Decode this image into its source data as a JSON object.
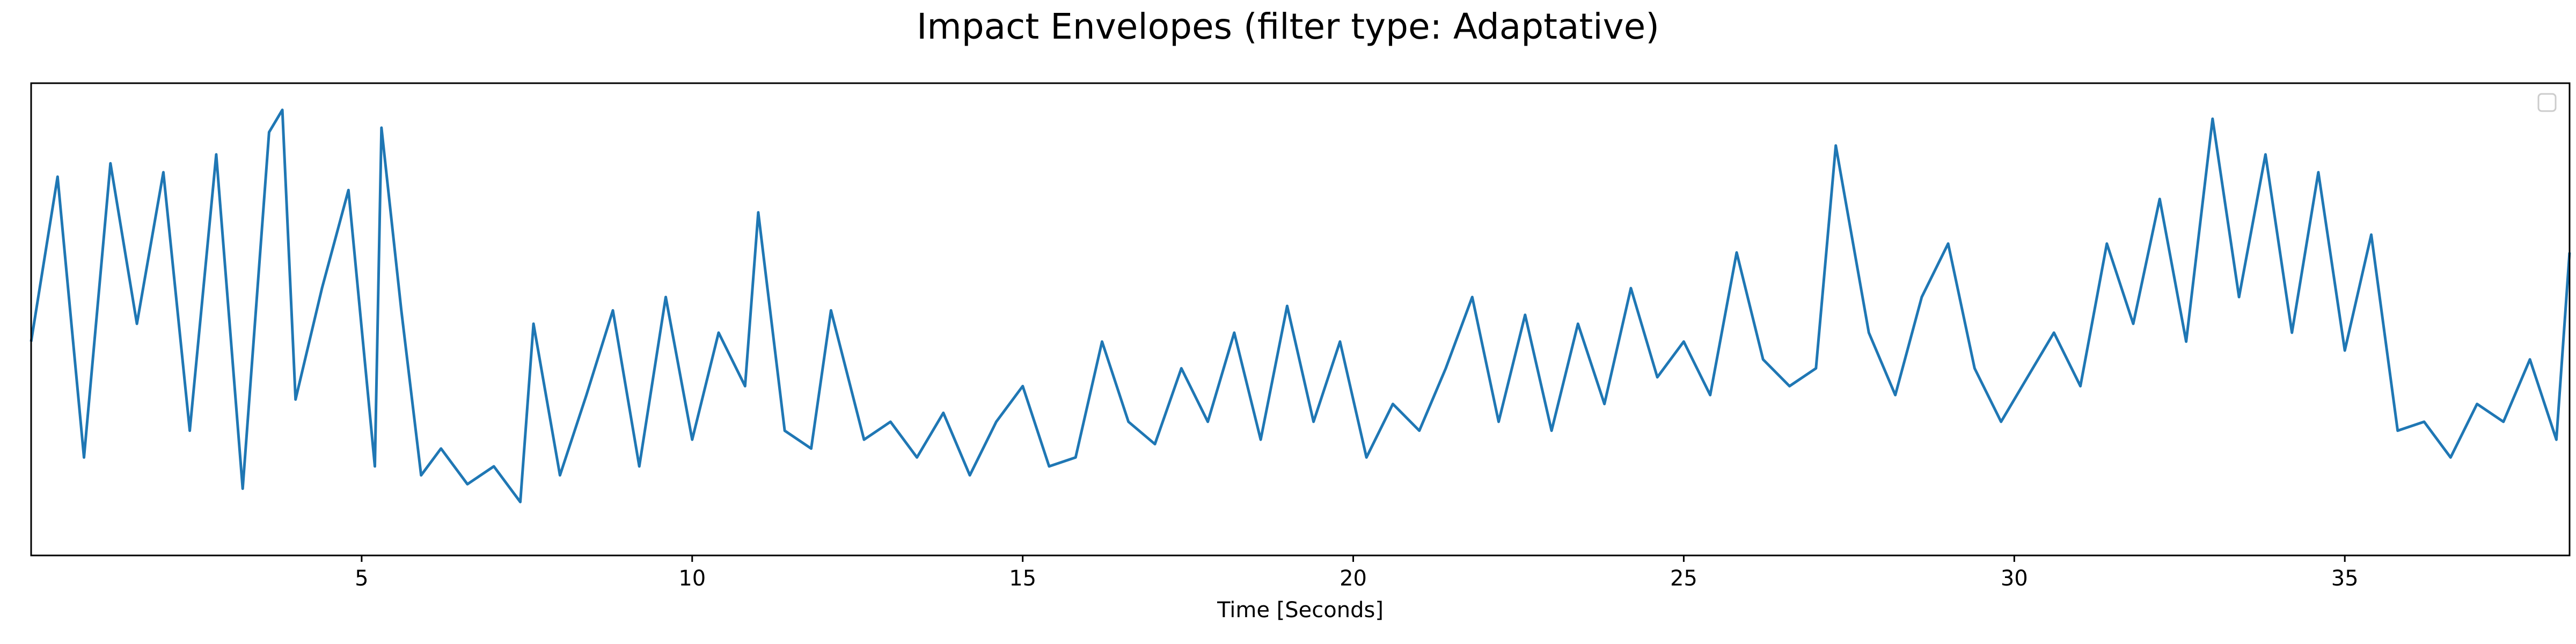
{
  "chart_data": {
    "type": "line",
    "title": "Impact Envelopes (filter type: Adaptative)",
    "xlabel": "Time [Seconds]",
    "ylabel": "",
    "xlim": [
      0,
      38.4
    ],
    "ylim": [
      0,
      1.06
    ],
    "x_ticks": [
      5,
      10,
      15,
      20,
      25,
      30,
      35
    ],
    "x_tick_labels": [
      "5",
      "10",
      "15",
      "20",
      "25",
      "30",
      "35"
    ],
    "y_ticks_visible": false,
    "grid": false,
    "legend": {
      "placement": "top-right",
      "entries": []
    },
    "series": [
      {
        "color": "#1f77b4",
        "x": [
          0.0,
          0.4,
          0.8,
          1.2,
          1.6,
          2.0,
          2.4,
          2.8,
          3.2,
          3.6,
          3.8,
          4.0,
          4.4,
          4.8,
          5.2,
          5.3,
          5.6,
          5.9,
          6.2,
          6.6,
          7.0,
          7.4,
          7.6,
          8.0,
          8.4,
          8.8,
          9.2,
          9.6,
          10.0,
          10.4,
          10.8,
          11.0,
          11.4,
          11.8,
          12.1,
          12.6,
          13.0,
          13.4,
          13.8,
          14.2,
          14.6,
          15.0,
          15.4,
          15.8,
          16.2,
          16.6,
          17.0,
          17.4,
          17.8,
          18.2,
          18.6,
          19.0,
          19.4,
          19.8,
          20.2,
          20.6,
          21.0,
          21.4,
          21.8,
          22.2,
          22.6,
          23.0,
          23.4,
          23.8,
          24.2,
          24.6,
          25.0,
          25.4,
          25.8,
          26.2,
          26.6,
          27.0,
          27.3,
          27.8,
          28.2,
          28.6,
          29.0,
          29.4,
          29.8,
          30.2,
          30.6,
          31.0,
          31.4,
          31.8,
          32.2,
          32.6,
          33.0,
          33.4,
          33.8,
          34.2,
          34.6,
          35.0,
          35.4,
          35.8,
          36.2,
          36.6,
          37.0,
          37.4,
          37.8,
          38.2,
          38.4
        ],
        "y": [
          0.48,
          0.85,
          0.22,
          0.88,
          0.52,
          0.86,
          0.28,
          0.9,
          0.15,
          0.95,
          1.0,
          0.35,
          0.6,
          0.82,
          0.2,
          0.96,
          0.55,
          0.18,
          0.24,
          0.16,
          0.2,
          0.12,
          0.52,
          0.18,
          0.36,
          0.55,
          0.2,
          0.58,
          0.26,
          0.5,
          0.38,
          0.77,
          0.28,
          0.24,
          0.55,
          0.26,
          0.3,
          0.22,
          0.32,
          0.18,
          0.3,
          0.38,
          0.2,
          0.22,
          0.48,
          0.3,
          0.25,
          0.42,
          0.3,
          0.5,
          0.26,
          0.56,
          0.3,
          0.48,
          0.22,
          0.34,
          0.28,
          0.42,
          0.58,
          0.3,
          0.54,
          0.28,
          0.52,
          0.34,
          0.6,
          0.4,
          0.48,
          0.36,
          0.68,
          0.44,
          0.38,
          0.42,
          0.92,
          0.5,
          0.36,
          0.58,
          0.7,
          0.42,
          0.3,
          0.4,
          0.5,
          0.38,
          0.7,
          0.52,
          0.8,
          0.48,
          0.98,
          0.58,
          0.9,
          0.5,
          0.86,
          0.46,
          0.72,
          0.28,
          0.3,
          0.22,
          0.34,
          0.3,
          0.44,
          0.26,
          0.68
        ]
      }
    ]
  }
}
